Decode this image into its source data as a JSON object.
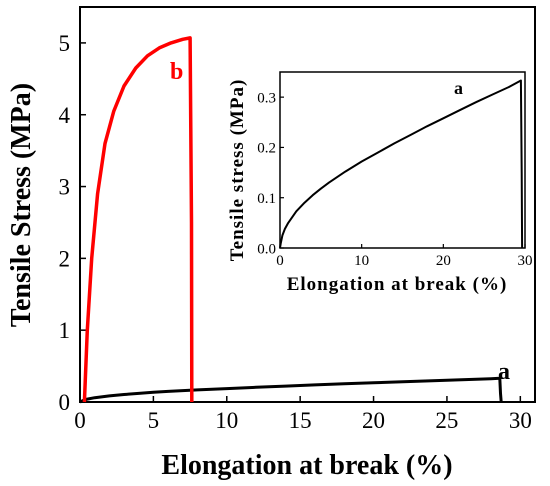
{
  "chart_data": [
    {
      "type": "line",
      "id": "main",
      "xlabel": "Elongation at break (%)",
      "ylabel": "Tensile Stress (MPa)",
      "xlim": [
        0,
        31
      ],
      "ylim": [
        0,
        5.5
      ],
      "xticks": [
        0,
        5,
        10,
        15,
        20,
        25,
        30
      ],
      "yticks": [
        0,
        1,
        2,
        3,
        4,
        5
      ],
      "grid": false,
      "series": [
        {
          "name": "a",
          "color": "#000000",
          "x": [
            0,
            0.2,
            0.5,
            1,
            2,
            3,
            4,
            5,
            6,
            8,
            10,
            12,
            14,
            16,
            18,
            20,
            22,
            24,
            26,
            28,
            28.6,
            28.65,
            28.7
          ],
          "y": [
            0,
            0.02,
            0.04,
            0.06,
            0.085,
            0.105,
            0.12,
            0.135,
            0.147,
            0.168,
            0.187,
            0.205,
            0.222,
            0.238,
            0.253,
            0.268,
            0.283,
            0.297,
            0.311,
            0.325,
            0.33,
            0.12,
            0
          ]
        },
        {
          "name": "b",
          "color": "#ff0000",
          "x": [
            0.3,
            0.5,
            0.8,
            1.2,
            1.7,
            2.3,
            3,
            3.8,
            4.6,
            5.4,
            6.2,
            7,
            7.5,
            7.6,
            7.62
          ],
          "y": [
            0,
            1.0,
            2.0,
            2.9,
            3.6,
            4.05,
            4.4,
            4.65,
            4.82,
            4.93,
            5.0,
            5.05,
            5.07,
            2.5,
            0
          ]
        }
      ],
      "annotations": [
        "a",
        "b"
      ]
    },
    {
      "type": "line",
      "id": "inset",
      "xlabel": "Elongation at break (%)",
      "ylabel": "Tensile stress (MPa)",
      "xlim": [
        0,
        30
      ],
      "ylim": [
        0,
        0.35
      ],
      "xticks": [
        0,
        10,
        20,
        30
      ],
      "yticks": [
        0.0,
        0.1,
        0.2,
        0.3
      ],
      "ytick_labels": [
        "0.0",
        "0.1",
        "0.2",
        "0.3"
      ],
      "grid": false,
      "series": [
        {
          "name": "a",
          "color": "#000000",
          "x": [
            0,
            0.1,
            0.3,
            0.6,
            1,
            2,
            3,
            4,
            5,
            6,
            8,
            10,
            12,
            14,
            16,
            18,
            20,
            22,
            24,
            26,
            28,
            29.5,
            29.6,
            29.65
          ],
          "y": [
            0,
            0.01,
            0.025,
            0.038,
            0.05,
            0.073,
            0.09,
            0.105,
            0.118,
            0.13,
            0.152,
            0.172,
            0.19,
            0.208,
            0.225,
            0.242,
            0.258,
            0.274,
            0.29,
            0.305,
            0.32,
            0.333,
            0.15,
            0
          ]
        }
      ],
      "annotations": [
        "a"
      ]
    }
  ]
}
